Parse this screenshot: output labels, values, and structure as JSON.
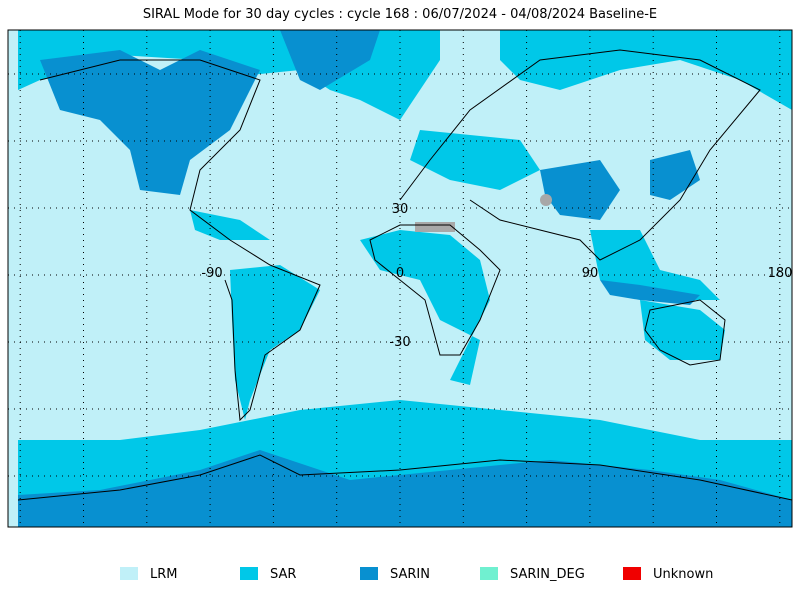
{
  "header": {
    "title": "SIRAL Mode for 30 day cycles : cycle 168 : 06/07/2024 - 04/08/2024 Baseline-E"
  },
  "map": {
    "grid_labels": [
      "30",
      "-90",
      "0",
      "90",
      "180",
      "-30"
    ]
  },
  "legend": {
    "items": [
      {
        "label": "LRM",
        "color": "#c0f0f8"
      },
      {
        "label": "SAR",
        "color": "#00c8e8"
      },
      {
        "label": "SARIN",
        "color": "#0890d0"
      },
      {
        "label": "SARIN_DEG",
        "color": "#70f0d0"
      },
      {
        "label": "Unknown",
        "color": "#f00000"
      }
    ]
  }
}
